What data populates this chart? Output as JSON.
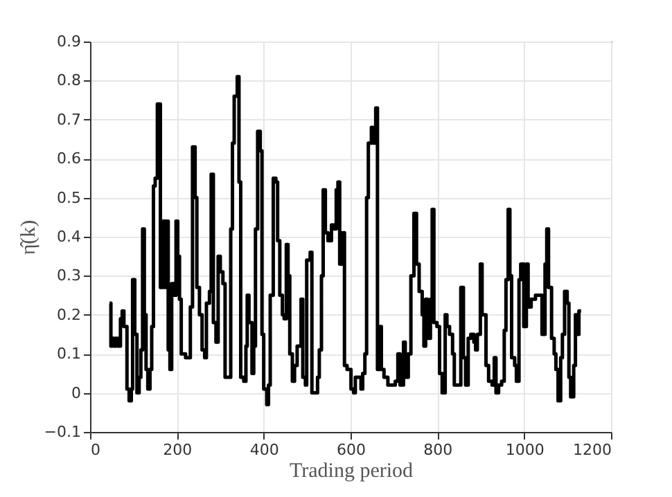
{
  "chart_data": {
    "type": "step",
    "xlabel": "Trading period",
    "ylabel": "η̂(k)",
    "xlim": [
      0,
      1200
    ],
    "xticks": [
      0,
      200,
      400,
      600,
      800,
      1000,
      1200
    ],
    "ylim": [
      -0.1,
      0.9
    ],
    "yticks": [
      -0.1,
      0,
      0.1,
      0.2,
      0.3,
      0.4,
      0.5,
      0.6,
      0.7,
      0.8,
      0.9
    ],
    "grid": true,
    "line_style": "solid",
    "marker": "none",
    "series": [
      {
        "color": "#000000",
        "x": [
          45,
          48,
          52,
          56,
          60,
          64,
          70,
          74,
          78,
          82,
          85,
          90,
          95,
          98,
          103,
          108,
          113,
          117,
          121,
          125,
          129,
          133,
          138,
          142,
          146,
          150,
          155,
          158,
          162,
          168,
          172,
          176,
          180,
          184,
          188,
          194,
          198,
          202,
          206,
          210,
          214,
          220,
          231,
          236,
          242,
          246,
          252,
          258,
          264,
          268,
          275,
          279,
          284,
          290,
          295,
          300,
          306,
          311,
          321,
          324,
          328,
          332,
          339,
          343,
          347,
          354,
          359,
          362,
          366,
          373,
          377,
          381,
          386,
          392,
          396,
          400,
          407,
          411,
          415,
          422,
          428,
          432,
          437,
          443,
          447,
          452,
          456,
          460,
          466,
          471,
          477,
          486,
          490,
          496,
          499,
          507,
          511,
          520,
          524,
          528,
          533,
          537,
          542,
          548,
          556,
          562,
          567,
          571,
          575,
          581,
          586,
          592,
          601,
          607,
          611,
          620,
          624,
          628,
          633,
          637,
          641,
          648,
          652,
          658,
          662,
          667,
          671,
          677,
          686,
          694,
          703,
          709,
          714,
          722,
          726,
          733,
          739,
          746,
          752,
          758,
          765,
          769,
          773,
          777,
          784,
          788,
          792,
          799,
          805,
          811,
          818,
          822,
          828,
          835,
          839,
          848,
          854,
          860,
          865,
          871,
          877,
          884,
          888,
          892,
          899,
          903,
          912,
          918,
          926,
          931,
          935,
          941,
          948,
          954,
          958,
          963,
          967,
          971,
          978,
          982,
          988,
          992,
          999,
          1005,
          1009,
          1016,
          1022,
          1026,
          1035,
          1041,
          1048,
          1052,
          1056,
          1063,
          1069,
          1073,
          1078,
          1084,
          1088,
          1093,
          1099,
          1103,
          1107,
          1114,
          1118,
          1122,
          1126,
          1131
        ],
        "values": [
          0.23,
          0.12,
          0.14,
          0.12,
          0.14,
          0.12,
          0.19,
          0.21,
          0.17,
          0.17,
          0.01,
          -0.02,
          0.01,
          0.29,
          0.15,
          0.0,
          0.04,
          0.11,
          0.42,
          0.2,
          0.06,
          0.01,
          0.06,
          0.17,
          0.53,
          0.55,
          0.74,
          0.74,
          0.27,
          0.44,
          0.27,
          0.44,
          0.11,
          0.06,
          0.28,
          0.25,
          0.44,
          0.35,
          0.24,
          0.1,
          0.1,
          0.09,
          0.22,
          0.63,
          0.5,
          0.27,
          0.2,
          0.11,
          0.09,
          0.23,
          0.26,
          0.56,
          0.18,
          0.13,
          0.35,
          0.31,
          0.28,
          0.04,
          0.04,
          0.42,
          0.64,
          0.76,
          0.81,
          0.54,
          0.04,
          0.03,
          0.12,
          0.25,
          0.18,
          0.05,
          0.12,
          0.42,
          0.67,
          0.62,
          0.15,
          0.01,
          -0.03,
          0.02,
          0.25,
          0.55,
          0.54,
          0.39,
          0.25,
          0.2,
          0.19,
          0.38,
          0.3,
          0.1,
          0.03,
          0.07,
          0.12,
          0.24,
          0.04,
          0.02,
          0.34,
          0.36,
          0.0,
          0.0,
          0.04,
          0.11,
          0.3,
          0.52,
          0.41,
          0.39,
          0.43,
          0.42,
          0.52,
          0.54,
          0.33,
          0.41,
          0.07,
          0.06,
          0.01,
          0.0,
          0.04,
          0.04,
          0.01,
          0.05,
          0.1,
          0.5,
          0.64,
          0.68,
          0.64,
          0.73,
          0.06,
          0.17,
          0.06,
          0.04,
          0.02,
          0.02,
          0.03,
          0.1,
          0.02,
          0.13,
          0.04,
          0.1,
          0.3,
          0.46,
          0.33,
          0.26,
          0.2,
          0.12,
          0.24,
          0.14,
          0.24,
          0.47,
          0.18,
          0.17,
          0.05,
          0.0,
          0.2,
          0.17,
          0.15,
          0.1,
          0.02,
          0.02,
          0.27,
          0.09,
          0.02,
          0.14,
          0.15,
          0.13,
          0.11,
          0.15,
          0.33,
          0.2,
          0.07,
          0.03,
          0.02,
          0.09,
          0.0,
          0.02,
          0.03,
          0.16,
          0.29,
          0.47,
          0.3,
          0.09,
          0.07,
          0.03,
          0.29,
          0.33,
          0.17,
          0.33,
          0.22,
          0.24,
          0.24,
          0.25,
          0.25,
          0.15,
          0.33,
          0.42,
          0.27,
          0.14,
          0.1,
          0.06,
          -0.02,
          0.09,
          0.15,
          0.26,
          0.23,
          0.04,
          -0.01,
          0.07,
          0.2,
          0.15,
          0.21,
          0.21
        ]
      }
    ]
  }
}
